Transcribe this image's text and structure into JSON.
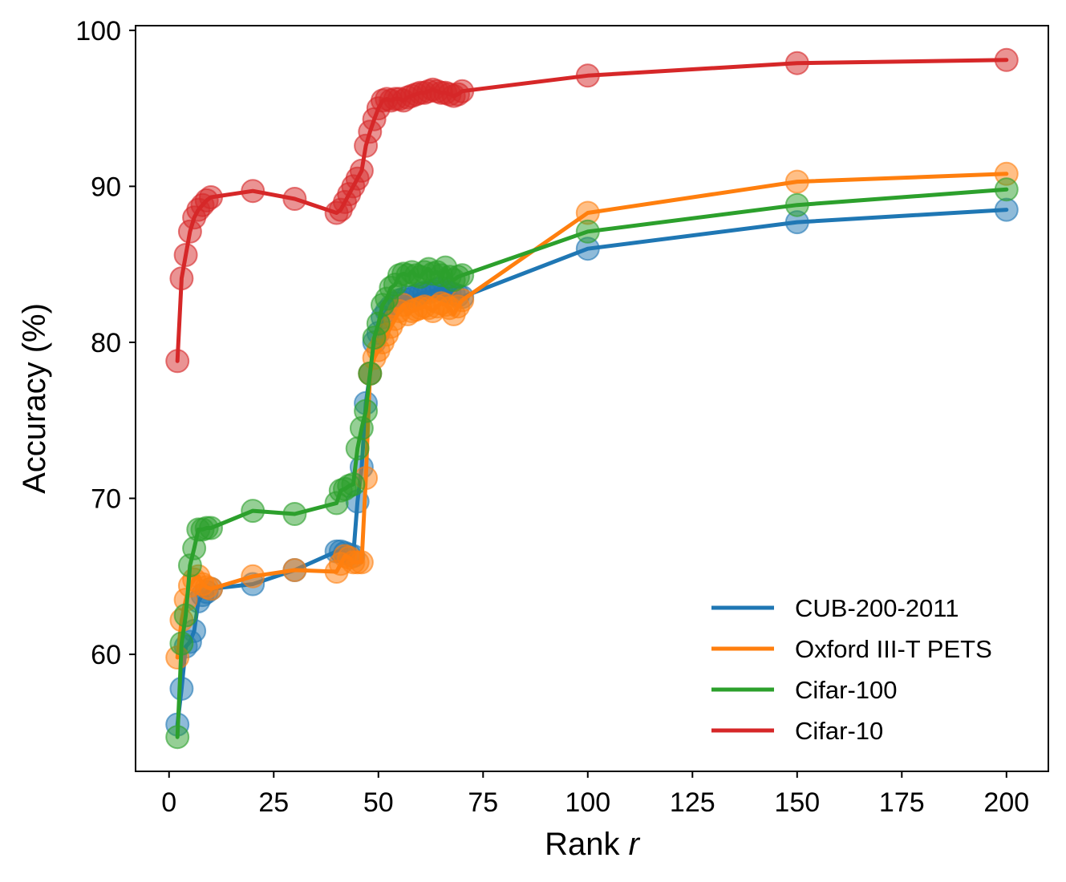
{
  "chart_data": {
    "type": "line",
    "xlabel": "Rank ",
    "xlabel_var": "r",
    "ylabel": "Accuracy (%)",
    "xlim": [
      -8,
      210
    ],
    "ylim": [
      52.5,
      100.3
    ],
    "xticks": [
      0,
      25,
      50,
      75,
      100,
      125,
      150,
      175,
      200
    ],
    "yticks": [
      60,
      70,
      80,
      90,
      100
    ],
    "grid": false,
    "legend_position": "lower-right",
    "markers": "circle",
    "series": [
      {
        "name": "CUB-200-2011",
        "color": "#1f77b4",
        "x": [
          2,
          3,
          4,
          5,
          6,
          7,
          8,
          9,
          10,
          20,
          30,
          40,
          41,
          42,
          43,
          44,
          45,
          46,
          47,
          48,
          49,
          50,
          51,
          52,
          53,
          54,
          55,
          56,
          57,
          58,
          59,
          60,
          61,
          62,
          63,
          64,
          65,
          66,
          67,
          68,
          69,
          70,
          100,
          150,
          200
        ],
        "y": [
          55.5,
          57.8,
          60.5,
          60.8,
          61.5,
          63.4,
          63.8,
          64.0,
          64.2,
          64.5,
          65.4,
          66.6,
          66.6,
          66.5,
          66.4,
          66.3,
          69.8,
          72.0,
          76.1,
          78.0,
          80.0,
          80.6,
          81.6,
          82.0,
          82.3,
          82.5,
          82.7,
          82.8,
          82.9,
          82.8,
          83.0,
          83.1,
          83.2,
          83.2,
          83.3,
          83.4,
          83.5,
          83.3,
          83.2,
          83.1,
          83.0,
          82.9,
          86.0,
          87.7,
          88.5
        ]
      },
      {
        "name": "Oxford III-T PETS",
        "color": "#ff7f0e",
        "x": [
          2,
          3,
          4,
          5,
          6,
          7,
          8,
          9,
          10,
          20,
          30,
          40,
          41,
          42,
          43,
          44,
          45,
          46,
          47,
          48,
          49,
          50,
          51,
          52,
          53,
          54,
          55,
          56,
          57,
          58,
          59,
          60,
          61,
          62,
          63,
          64,
          65,
          66,
          67,
          68,
          69,
          70,
          100,
          150,
          200
        ],
        "y": [
          59.8,
          62.2,
          63.5,
          64.4,
          64.8,
          65.0,
          64.5,
          64.3,
          64.2,
          65.0,
          65.4,
          65.3,
          65.8,
          66.3,
          66.2,
          65.9,
          65.9,
          65.9,
          71.3,
          78.0,
          79.0,
          79.5,
          80.0,
          80.5,
          81.0,
          81.5,
          82.0,
          82.4,
          81.8,
          82.0,
          82.1,
          82.2,
          82.3,
          82.2,
          82.0,
          82.3,
          82.5,
          82.4,
          82.2,
          81.8,
          82.3,
          82.7,
          88.3,
          90.3,
          90.8
        ]
      },
      {
        "name": "Cifar-100",
        "color": "#2ca02c",
        "x": [
          2,
          3,
          4,
          5,
          6,
          7,
          8,
          9,
          10,
          20,
          30,
          40,
          41,
          42,
          43,
          44,
          45,
          46,
          47,
          48,
          49,
          50,
          51,
          52,
          53,
          54,
          55,
          56,
          57,
          58,
          59,
          60,
          61,
          62,
          63,
          64,
          65,
          66,
          67,
          68,
          69,
          70,
          100,
          150,
          200
        ],
        "y": [
          54.7,
          60.7,
          62.5,
          65.7,
          66.8,
          68.0,
          68.0,
          68.1,
          68.1,
          69.2,
          69.0,
          69.7,
          70.5,
          70.6,
          70.8,
          70.9,
          73.2,
          74.5,
          75.6,
          78.0,
          80.3,
          81.2,
          82.4,
          82.8,
          83.5,
          83.7,
          84.3,
          84.4,
          84.3,
          84.5,
          84.3,
          84.2,
          84.5,
          84.7,
          84.4,
          84.5,
          84.3,
          84.8,
          84.2,
          84.0,
          84.2,
          84.3,
          87.1,
          88.8,
          89.8
        ]
      },
      {
        "name": "Cifar-10",
        "color": "#d62728",
        "x": [
          2,
          3,
          4,
          5,
          6,
          7,
          8,
          9,
          10,
          20,
          30,
          40,
          41,
          42,
          43,
          44,
          45,
          46,
          47,
          48,
          49,
          50,
          51,
          52,
          53,
          54,
          55,
          56,
          57,
          58,
          59,
          60,
          61,
          62,
          63,
          64,
          65,
          66,
          67,
          68,
          69,
          70,
          100,
          150,
          200
        ],
        "y": [
          78.8,
          84.1,
          85.6,
          87.1,
          88.0,
          88.5,
          88.8,
          89.1,
          89.3,
          89.7,
          89.2,
          88.3,
          88.5,
          89.0,
          89.5,
          90.0,
          90.5,
          91.0,
          92.6,
          93.5,
          94.3,
          95.0,
          95.5,
          95.6,
          95.5,
          95.6,
          95.6,
          95.5,
          95.7,
          95.8,
          95.9,
          96.0,
          96.0,
          96.1,
          96.2,
          96.1,
          96.0,
          96.0,
          95.9,
          95.8,
          95.9,
          96.1,
          97.1,
          97.9,
          98.1
        ]
      }
    ]
  }
}
